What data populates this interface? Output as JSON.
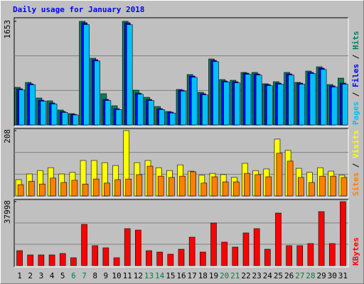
{
  "chart_data": [
    {
      "type": "bar",
      "title": "Daily usage for January 2018",
      "ylim": [
        0,
        1653
      ],
      "yticks": [
        1653
      ],
      "legend_separator": " / ",
      "series": [
        {
          "name": "Hits",
          "color": "#00805c",
          "values": [
            600,
            679,
            430,
            385,
            238,
            181,
            1653,
            1064,
            498,
            306,
            1653,
            555,
            441,
            294,
            215,
            566,
            804,
            521,
            1053,
            724,
            713,
            838,
            838,
            657,
            690,
            838,
            679,
            860,
            928,
            645,
            747
          ]
        },
        {
          "name": "Files",
          "color": "#0000ff",
          "values": [
            577,
            657,
            396,
            351,
            215,
            170,
            1630,
            1041,
            408,
            260,
            1630,
            509,
            408,
            260,
            204,
            555,
            781,
            498,
            1030,
            702,
            690,
            826,
            815,
            645,
            668,
            815,
            668,
            838,
            906,
            623,
            668
          ]
        },
        {
          "name": "Pages",
          "color": "#00c0ff",
          "values": [
            560,
            640,
            380,
            335,
            200,
            160,
            1600,
            1020,
            390,
            245,
            1600,
            490,
            390,
            245,
            190,
            540,
            760,
            480,
            1010,
            685,
            672,
            808,
            796,
            628,
            650,
            796,
            650,
            820,
            885,
            605,
            650
          ]
        }
      ]
    },
    {
      "type": "bar",
      "ylim": [
        0,
        208
      ],
      "yticks": [
        208
      ],
      "legend_separator": " / ",
      "series": [
        {
          "name": "Visits",
          "color": "#ffff00",
          "values": [
            52,
            70,
            81,
            90,
            70,
            75,
            113,
            113,
            106,
            97,
            208,
            106,
            113,
            90,
            81,
            99,
            79,
            66,
            72,
            68,
            59,
            104,
            81,
            86,
            181,
            145,
            88,
            75,
            90,
            79,
            66
          ]
        },
        {
          "name": "Sites",
          "color": "#ff8000",
          "values": [
            36,
            47,
            38,
            57,
            43,
            50,
            38,
            54,
            41,
            52,
            54,
            68,
            95,
            63,
            59,
            63,
            77,
            41,
            61,
            45,
            45,
            72,
            68,
            61,
            136,
            111,
            59,
            43,
            63,
            63,
            59
          ]
        }
      ]
    },
    {
      "type": "bar",
      "ylim": [
        0,
        37998
      ],
      "yticks": [
        37998
      ],
      "categories": [
        "1",
        "2",
        "3",
        "4",
        "5",
        "6",
        "7",
        "8",
        "9",
        "10",
        "11",
        "12",
        "13",
        "14",
        "15",
        "16",
        "17",
        "18",
        "19",
        "20",
        "21",
        "22",
        "23",
        "24",
        "25",
        "26",
        "27",
        "28",
        "29",
        "30",
        "31"
      ],
      "category_color": "#000000",
      "weekend_color": "#008040",
      "weekend_indices": [
        5,
        6,
        12,
        13,
        19,
        20,
        26,
        27
      ],
      "series": [
        {
          "name": "KBytes",
          "color": "#ff0000",
          "values": [
            8862,
            6330,
            6330,
            6330,
            7174,
            4642,
            24476,
            11816,
            10550,
            4642,
            21944,
            21100,
            8862,
            8018,
            6752,
            9706,
            16880,
            8018,
            25320,
            13926,
            10972,
            19412,
            21944,
            9706,
            31228,
            11816,
            11816,
            13082,
            32072,
            13082,
            37998
          ]
        }
      ]
    }
  ]
}
